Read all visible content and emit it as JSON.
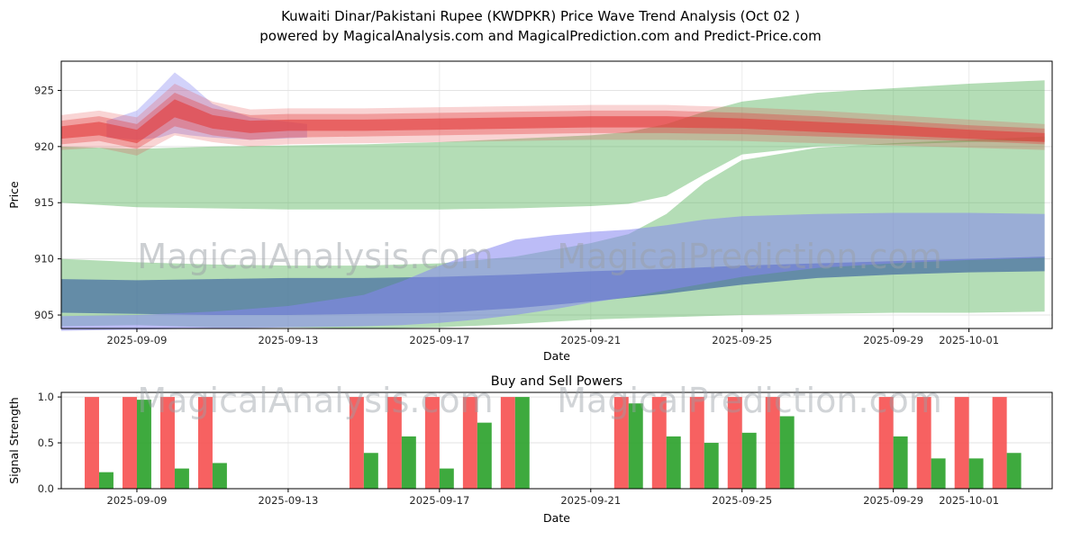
{
  "title": {
    "line1": "Kuwaiti Dinar/Pakistani Rupee (KWDPKR) Price Wave Trend Analysis (Oct 02 )",
    "line2": "powered by MagicalAnalysis.com and MagicalPrediction.com and Predict-Price.com"
  },
  "watermark_left": "MagicalAnalysis.com",
  "watermark_right": "MagicalPrediction.com",
  "chart_data": [
    {
      "type": "area",
      "title": "",
      "xlabel": "Date",
      "ylabel": "Price",
      "ylim": [
        903.8,
        927.6
      ],
      "xlim_days": [
        0,
        26.2
      ],
      "grid": true,
      "yticks": [
        {
          "v": 905,
          "label": "905"
        },
        {
          "v": 910,
          "label": "910"
        },
        {
          "v": 915,
          "label": "915"
        },
        {
          "v": 920,
          "label": "920"
        },
        {
          "v": 925,
          "label": "925"
        }
      ],
      "xticks": [
        {
          "day": 2,
          "label": "2025-09-09"
        },
        {
          "day": 6,
          "label": "2025-09-13"
        },
        {
          "day": 10,
          "label": "2025-09-17"
        },
        {
          "day": 14,
          "label": "2025-09-21"
        },
        {
          "day": 18,
          "label": "2025-09-25"
        },
        {
          "day": 22,
          "label": "2025-09-29"
        },
        {
          "day": 24,
          "label": "2025-10-01"
        }
      ],
      "bands": [
        {
          "name": "green-lower",
          "color": "#4caf50",
          "opacity": 0.42,
          "x": [
            0,
            2,
            4,
            6,
            8,
            10,
            12,
            13,
            14,
            15,
            16,
            17,
            18,
            20,
            22,
            24,
            26
          ],
          "upper": [
            910.0,
            909.7,
            909.5,
            909.4,
            909.4,
            909.6,
            910.2,
            910.8,
            911.4,
            912.2,
            914.0,
            916.8,
            918.8,
            919.9,
            920.3,
            920.6,
            920.9
          ],
          "lower": [
            904.0,
            904.1,
            903.9,
            903.9,
            903.8,
            903.9,
            904.2,
            904.4,
            904.6,
            904.7,
            904.8,
            904.9,
            905.0,
            905.1,
            905.2,
            905.2,
            905.3
          ]
        },
        {
          "name": "green-upper",
          "color": "#4caf50",
          "opacity": 0.42,
          "x": [
            0,
            2,
            4,
            6,
            8,
            10,
            12,
            14,
            15,
            16,
            17,
            18,
            20,
            22,
            24,
            26
          ],
          "lower": [
            915.0,
            914.6,
            914.5,
            914.4,
            914.4,
            914.4,
            914.5,
            914.7,
            914.9,
            915.6,
            917.5,
            919.3,
            920.0,
            920.2,
            920.4,
            920.5
          ],
          "upper": [
            920.0,
            919.8,
            920.0,
            920.1,
            920.2,
            920.4,
            920.7,
            921.0,
            921.3,
            922.0,
            923.1,
            924.0,
            924.8,
            925.2,
            925.6,
            925.9
          ]
        },
        {
          "name": "dark-channel",
          "color": "#4d74a3",
          "opacity": 0.78,
          "x": [
            0,
            2,
            4,
            6,
            8,
            10,
            12,
            14,
            16,
            18,
            20,
            22,
            24,
            26
          ],
          "lower": [
            905.2,
            905.1,
            905.0,
            905.0,
            905.1,
            905.2,
            905.6,
            906.2,
            906.9,
            907.7,
            908.3,
            908.6,
            908.8,
            908.9
          ],
          "upper": [
            908.2,
            908.1,
            908.2,
            908.3,
            908.3,
            908.4,
            908.6,
            908.9,
            909.1,
            909.4,
            909.6,
            909.8,
            910.0,
            910.2
          ]
        },
        {
          "name": "periwinkle-forecast",
          "color": "#8585f0",
          "opacity": 0.55,
          "x": [
            0,
            2,
            4,
            6,
            8,
            9,
            10,
            11,
            12,
            13,
            14,
            15,
            16,
            17,
            18,
            20,
            22,
            24,
            26
          ],
          "lower": [
            903.6,
            903.7,
            903.8,
            903.9,
            904.0,
            904.1,
            904.3,
            904.6,
            905.0,
            905.5,
            906.1,
            906.6,
            907.2,
            907.8,
            908.4,
            909.2,
            909.6,
            909.9,
            910.1
          ],
          "upper": [
            904.9,
            905.0,
            905.3,
            905.8,
            906.8,
            908.0,
            909.4,
            910.6,
            911.7,
            912.1,
            912.4,
            912.6,
            913.0,
            913.5,
            913.8,
            914.0,
            914.1,
            914.1,
            914.0
          ]
        },
        {
          "name": "blue-spike",
          "color": "#9b9bf5",
          "opacity": 0.45,
          "x": [
            1.2,
            2,
            2.6,
            3,
            3.4,
            4,
            5,
            6.5
          ],
          "lower": [
            920.8,
            920.6,
            920.8,
            921.2,
            921.0,
            920.8,
            920.6,
            920.8
          ],
          "upper": [
            922.3,
            923.2,
            925.2,
            926.6,
            925.6,
            923.8,
            922.6,
            922.0
          ]
        },
        {
          "name": "red-outer",
          "color": "#e23a3a",
          "opacity": 0.22,
          "x": [
            0,
            1,
            2,
            3,
            4,
            5,
            6,
            8,
            10,
            12,
            14,
            16,
            18,
            20,
            22,
            24,
            26
          ],
          "lower": [
            919.7,
            919.9,
            919.2,
            921.0,
            920.4,
            920.0,
            920.2,
            920.3,
            920.4,
            920.5,
            920.6,
            920.6,
            920.5,
            920.3,
            920.1,
            919.9,
            919.7
          ],
          "upper": [
            922.8,
            923.2,
            922.6,
            925.6,
            924.0,
            923.3,
            923.4,
            923.4,
            923.5,
            923.6,
            923.7,
            923.7,
            923.5,
            923.2,
            922.8,
            922.4,
            922.0
          ]
        },
        {
          "name": "red-mid",
          "color": "#e23a3a",
          "opacity": 0.35,
          "x": [
            0,
            1,
            2,
            3,
            4,
            5,
            6,
            8,
            10,
            12,
            14,
            16,
            18,
            20,
            22,
            24,
            26
          ],
          "lower": [
            920.2,
            920.5,
            919.8,
            921.8,
            921.0,
            920.6,
            920.8,
            920.9,
            921.0,
            921.1,
            921.2,
            921.2,
            921.1,
            920.9,
            920.7,
            920.5,
            920.2
          ],
          "upper": [
            922.3,
            922.7,
            922.0,
            924.8,
            923.4,
            922.8,
            922.9,
            922.9,
            923.0,
            923.1,
            923.2,
            923.2,
            923.0,
            922.7,
            922.3,
            921.9,
            921.6
          ]
        },
        {
          "name": "red-inner",
          "color": "#e23a3a",
          "opacity": 0.6,
          "x": [
            0,
            1,
            2,
            3,
            4,
            5,
            6,
            8,
            10,
            12,
            14,
            16,
            18,
            20,
            22,
            24,
            26
          ],
          "lower": [
            920.7,
            921.0,
            920.3,
            922.6,
            921.6,
            921.2,
            921.4,
            921.4,
            921.5,
            921.6,
            921.7,
            921.7,
            921.6,
            921.3,
            921.0,
            920.7,
            920.4
          ],
          "upper": [
            921.8,
            922.2,
            921.5,
            924.2,
            922.8,
            922.3,
            922.4,
            922.4,
            922.5,
            922.6,
            922.7,
            922.7,
            922.5,
            922.2,
            921.9,
            921.5,
            921.2
          ]
        }
      ]
    },
    {
      "type": "bar",
      "title": "Buy and Sell Powers",
      "xlabel": "Date",
      "ylabel": "Signal Strength",
      "ylim": [
        0,
        1.05
      ],
      "grid": true,
      "bar_half_width_days": 0.38,
      "colors": {
        "sell": "#f64b4b",
        "buy": "#2ea32e"
      },
      "yticks": [
        {
          "v": 0.0,
          "label": "0.0"
        },
        {
          "v": 0.5,
          "label": "0.5"
        },
        {
          "v": 1.0,
          "label": "1.0"
        }
      ],
      "xticks": [
        {
          "day": 2,
          "label": "2025-09-09"
        },
        {
          "day": 6,
          "label": "2025-09-13"
        },
        {
          "day": 10,
          "label": "2025-09-17"
        },
        {
          "day": 14,
          "label": "2025-09-21"
        },
        {
          "day": 18,
          "label": "2025-09-25"
        },
        {
          "day": 22,
          "label": "2025-09-29"
        },
        {
          "day": 24,
          "label": "2025-10-01"
        }
      ],
      "bars": [
        {
          "date": "2025-09-08",
          "day": 1,
          "sell": 1.0,
          "buy": 0.18
        },
        {
          "date": "2025-09-09",
          "day": 2,
          "sell": 1.0,
          "buy": 0.97
        },
        {
          "date": "2025-09-10",
          "day": 3,
          "sell": 1.0,
          "buy": 0.22
        },
        {
          "date": "2025-09-11",
          "day": 4,
          "sell": 1.0,
          "buy": 0.28
        },
        {
          "date": "2025-09-15",
          "day": 8,
          "sell": 1.0,
          "buy": 0.39
        },
        {
          "date": "2025-09-16",
          "day": 9,
          "sell": 1.0,
          "buy": 0.57
        },
        {
          "date": "2025-09-17",
          "day": 10,
          "sell": 1.0,
          "buy": 0.22
        },
        {
          "date": "2025-09-18",
          "day": 11,
          "sell": 1.0,
          "buy": 0.72
        },
        {
          "date": "2025-09-19",
          "day": 12,
          "sell": 1.0,
          "buy": 1.0
        },
        {
          "date": "2025-09-22",
          "day": 15,
          "sell": 1.0,
          "buy": 0.93
        },
        {
          "date": "2025-09-23",
          "day": 16,
          "sell": 1.0,
          "buy": 0.57
        },
        {
          "date": "2025-09-24",
          "day": 17,
          "sell": 1.0,
          "buy": 0.5
        },
        {
          "date": "2025-09-25",
          "day": 18,
          "sell": 1.0,
          "buy": 0.61
        },
        {
          "date": "2025-09-26",
          "day": 19,
          "sell": 1.0,
          "buy": 0.79
        },
        {
          "date": "2025-09-29",
          "day": 22,
          "sell": 1.0,
          "buy": 0.57
        },
        {
          "date": "2025-09-30",
          "day": 23,
          "sell": 1.0,
          "buy": 0.33
        },
        {
          "date": "2025-10-01",
          "day": 24,
          "sell": 1.0,
          "buy": 0.33
        },
        {
          "date": "2025-10-02",
          "day": 25,
          "sell": 1.0,
          "buy": 0.39
        }
      ]
    }
  ]
}
